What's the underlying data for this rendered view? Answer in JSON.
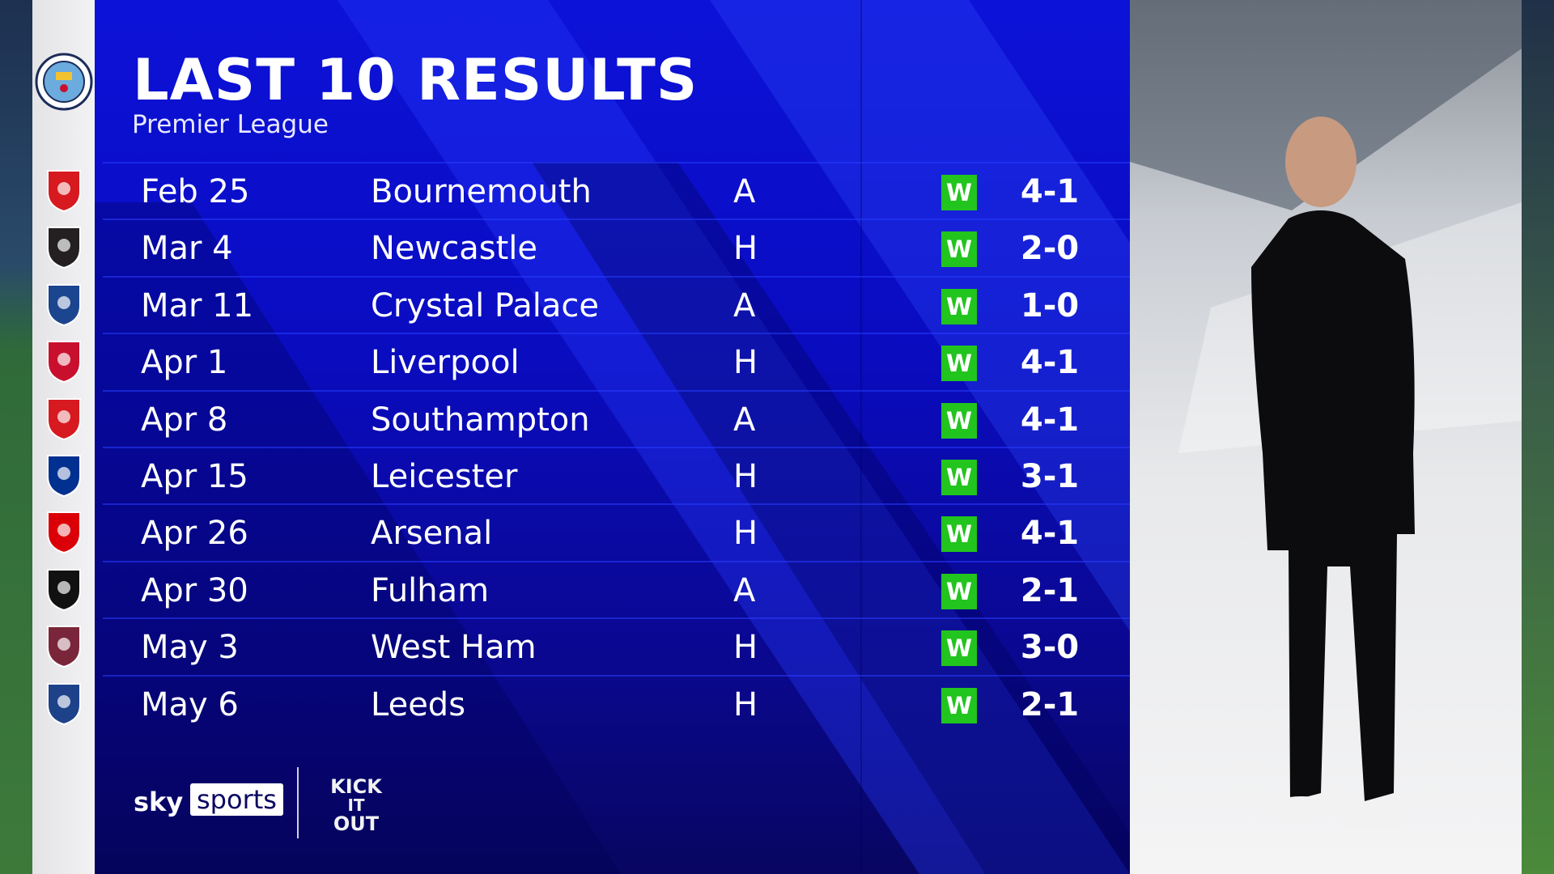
{
  "header": {
    "title": "LAST 10 RESULTS",
    "subtitle": "Premier League"
  },
  "team_badge": "manchester-city-badge",
  "colors": {
    "panel_blue": "#0a0cc0",
    "win_green": "#22c41e"
  },
  "results": [
    {
      "date": "Feb 25",
      "opponent": "Bournemouth",
      "venue": "A",
      "result": "W",
      "score": "4-1",
      "badge": "bournemouth-badge",
      "badge_color": "#d71920"
    },
    {
      "date": "Mar 4",
      "opponent": "Newcastle",
      "venue": "H",
      "result": "W",
      "score": "2-0",
      "badge": "newcastle-badge",
      "badge_color": "#241f20"
    },
    {
      "date": "Mar 11",
      "opponent": "Crystal Palace",
      "venue": "A",
      "result": "W",
      "score": "1-0",
      "badge": "crystal-palace-badge",
      "badge_color": "#1b458f"
    },
    {
      "date": "Apr 1",
      "opponent": "Liverpool",
      "venue": "H",
      "result": "W",
      "score": "4-1",
      "badge": "liverpool-badge",
      "badge_color": "#c8102e"
    },
    {
      "date": "Apr 8",
      "opponent": "Southampton",
      "venue": "A",
      "result": "W",
      "score": "4-1",
      "badge": "southampton-badge",
      "badge_color": "#d71920"
    },
    {
      "date": "Apr 15",
      "opponent": "Leicester",
      "venue": "H",
      "result": "W",
      "score": "3-1",
      "badge": "leicester-badge",
      "badge_color": "#003090"
    },
    {
      "date": "Apr 26",
      "opponent": "Arsenal",
      "venue": "H",
      "result": "W",
      "score": "4-1",
      "badge": "arsenal-badge",
      "badge_color": "#db0007"
    },
    {
      "date": "Apr 30",
      "opponent": "Fulham",
      "venue": "A",
      "result": "W",
      "score": "2-1",
      "badge": "fulham-badge",
      "badge_color": "#111111"
    },
    {
      "date": "May 3",
      "opponent": "West Ham",
      "venue": "H",
      "result": "W",
      "score": "3-0",
      "badge": "west-ham-badge",
      "badge_color": "#7a263a"
    },
    {
      "date": "May 6",
      "opponent": "Leeds",
      "venue": "H",
      "result": "W",
      "score": "2-1",
      "badge": "leeds-badge",
      "badge_color": "#1d428a"
    }
  ],
  "footer": {
    "sky": "sky",
    "sports": "sports",
    "kick_it_out": "KICK IT OUT"
  }
}
